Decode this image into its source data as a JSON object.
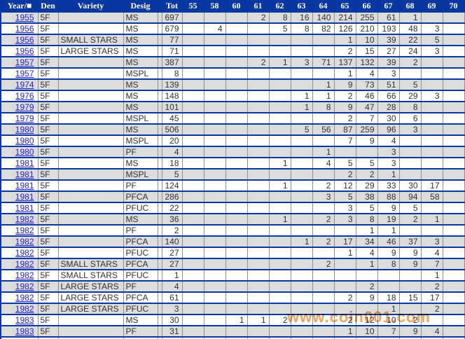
{
  "table": {
    "columns": [
      "Year/■",
      "Den",
      "Variety",
      "Desig",
      "Tot",
      "55",
      "58",
      "60",
      "61",
      "62",
      "63",
      "64",
      "65",
      "66",
      "67",
      "68",
      "69",
      "70"
    ],
    "year_columns": [
      "55",
      "58",
      "60",
      "61",
      "62",
      "63",
      "64",
      "65",
      "66",
      "67",
      "68",
      "69",
      "70"
    ],
    "rows": [
      {
        "year": "1955",
        "den": "5F",
        "variety": "",
        "desig": "MS",
        "tot": "697",
        "values": {
          "61": "2",
          "62": "8",
          "63": "16",
          "64": "140",
          "65": "214",
          "66": "255",
          "67": "61",
          "68": "1"
        }
      },
      {
        "year": "1956",
        "den": "5F",
        "variety": "",
        "desig": "MS",
        "tot": "679",
        "values": {
          "58": "4",
          "62": "5",
          "63": "8",
          "64": "82",
          "65": "126",
          "66": "210",
          "67": "193",
          "68": "48",
          "69": "3"
        }
      },
      {
        "year": "1956",
        "den": "5F",
        "variety": "SMALL STARS",
        "desig": "MS",
        "tot": "77",
        "values": {
          "65": "1",
          "66": "10",
          "67": "39",
          "68": "22",
          "69": "5"
        }
      },
      {
        "year": "1956",
        "den": "5F",
        "variety": "LARGE STARS",
        "desig": "MS",
        "tot": "71",
        "values": {
          "65": "2",
          "66": "15",
          "67": "27",
          "68": "24",
          "69": "3"
        }
      },
      {
        "year": "1957",
        "den": "5F",
        "variety": "",
        "desig": "MS",
        "tot": "387",
        "values": {
          "61": "2",
          "62": "1",
          "63": "3",
          "64": "71",
          "65": "137",
          "66": "132",
          "67": "39",
          "68": "2"
        }
      },
      {
        "year": "1957",
        "den": "5F",
        "variety": "",
        "desig": "MSPL",
        "tot": "8",
        "values": {
          "65": "1",
          "66": "4",
          "67": "3"
        }
      },
      {
        "year": "1974",
        "den": "5F",
        "variety": "",
        "desig": "MS",
        "tot": "139",
        "values": {
          "64": "1",
          "65": "9",
          "66": "73",
          "67": "51",
          "68": "5"
        }
      },
      {
        "year": "1976",
        "den": "5F",
        "variety": "",
        "desig": "MS",
        "tot": "148",
        "values": {
          "63": "1",
          "64": "1",
          "65": "2",
          "66": "46",
          "67": "66",
          "68": "29",
          "69": "3"
        }
      },
      {
        "year": "1979",
        "den": "5F",
        "variety": "",
        "desig": "MS",
        "tot": "101",
        "values": {
          "63": "1",
          "64": "8",
          "65": "9",
          "66": "47",
          "67": "28",
          "68": "8"
        }
      },
      {
        "year": "1979",
        "den": "5F",
        "variety": "",
        "desig": "MSPL",
        "tot": "45",
        "values": {
          "65": "2",
          "66": "7",
          "67": "30",
          "68": "6"
        }
      },
      {
        "year": "1980",
        "den": "5F",
        "variety": "",
        "desig": "MS",
        "tot": "506",
        "values": {
          "63": "5",
          "64": "56",
          "65": "87",
          "66": "259",
          "67": "96",
          "68": "3"
        }
      },
      {
        "year": "1980",
        "den": "5F",
        "variety": "",
        "desig": "MSPL",
        "tot": "20",
        "values": {
          "65": "7",
          "66": "9",
          "67": "4"
        }
      },
      {
        "year": "1980",
        "den": "5F",
        "variety": "",
        "desig": "PF",
        "tot": "4",
        "values": {
          "64": "1",
          "67": "3"
        }
      },
      {
        "year": "1981",
        "den": "5F",
        "variety": "",
        "desig": "MS",
        "tot": "18",
        "values": {
          "62": "1",
          "64": "4",
          "65": "5",
          "66": "5",
          "67": "3"
        }
      },
      {
        "year": "1981",
        "den": "5F",
        "variety": "",
        "desig": "MSPL",
        "tot": "5",
        "values": {
          "65": "2",
          "66": "2",
          "67": "1"
        }
      },
      {
        "year": "1981",
        "den": "5F",
        "variety": "",
        "desig": "PF",
        "tot": "124",
        "values": {
          "62": "1",
          "64": "2",
          "65": "12",
          "66": "29",
          "67": "33",
          "68": "30",
          "69": "17"
        }
      },
      {
        "year": "1981",
        "den": "5F",
        "variety": "",
        "desig": "PFCA",
        "tot": "286",
        "values": {
          "64": "3",
          "65": "5",
          "66": "38",
          "67": "88",
          "68": "94",
          "69": "58"
        }
      },
      {
        "year": "1981",
        "den": "5F",
        "variety": "",
        "desig": "PFUC",
        "tot": "22",
        "values": {
          "65": "3",
          "66": "5",
          "67": "9",
          "68": "5"
        }
      },
      {
        "year": "1982",
        "den": "5F",
        "variety": "",
        "desig": "MS",
        "tot": "36",
        "values": {
          "62": "1",
          "64": "2",
          "65": "3",
          "66": "8",
          "67": "19",
          "68": "2",
          "69": "1"
        }
      },
      {
        "year": "1982",
        "den": "5F",
        "variety": "",
        "desig": "PF",
        "tot": "2",
        "values": {
          "66": "1",
          "67": "1"
        }
      },
      {
        "year": "1982",
        "den": "5F",
        "variety": "",
        "desig": "PFCA",
        "tot": "140",
        "values": {
          "63": "1",
          "64": "2",
          "65": "17",
          "66": "34",
          "67": "46",
          "68": "37",
          "69": "3"
        }
      },
      {
        "year": "1982",
        "den": "5F",
        "variety": "",
        "desig": "PFUC",
        "tot": "27",
        "values": {
          "65": "1",
          "66": "4",
          "67": "9",
          "68": "9",
          "69": "4"
        }
      },
      {
        "year": "1982",
        "den": "5F",
        "variety": "SMALL STARS",
        "desig": "PFCA",
        "tot": "27",
        "values": {
          "64": "2",
          "66": "1",
          "67": "8",
          "68": "9",
          "69": "7"
        }
      },
      {
        "year": "1982",
        "den": "5F",
        "variety": "SMALL STARS",
        "desig": "PFUC",
        "tot": "1",
        "values": {
          "69": "1"
        }
      },
      {
        "year": "1982",
        "den": "5F",
        "variety": "LARGE STARS",
        "desig": "PF",
        "tot": "4",
        "values": {
          "66": "2",
          "69": "2"
        }
      },
      {
        "year": "1982",
        "den": "5F",
        "variety": "LARGE STARS",
        "desig": "PFCA",
        "tot": "61",
        "values": {
          "65": "2",
          "66": "9",
          "67": "18",
          "68": "15",
          "69": "17"
        }
      },
      {
        "year": "1982",
        "den": "5F",
        "variety": "LARGE STARS",
        "desig": "PFUC",
        "tot": "3",
        "values": {
          "67": "1",
          "69": "2"
        }
      },
      {
        "year": "1983",
        "den": "5F",
        "variety": "",
        "desig": "MS",
        "tot": "30",
        "values": {
          "60": "1",
          "61": "1",
          "62": "2",
          "65": "2",
          "66": "12",
          "67": "10",
          "68": "2"
        }
      },
      {
        "year": "1983",
        "den": "5F",
        "variety": "",
        "desig": "PF",
        "tot": "31",
        "values": {
          "65": "1",
          "66": "10",
          "67": "7",
          "68": "9",
          "69": "4"
        }
      }
    ]
  },
  "watermark": {
    "text": "www.coin001.com",
    "color": "#f0a25f"
  },
  "colors": {
    "header_bg": "#0a38a2",
    "row_separator": "#0a38a2",
    "alt_row_bg": "#dcdcdc",
    "cell_border": "#8f8f8f",
    "year_link": "#1f1fd0",
    "value_text": "#363039"
  }
}
